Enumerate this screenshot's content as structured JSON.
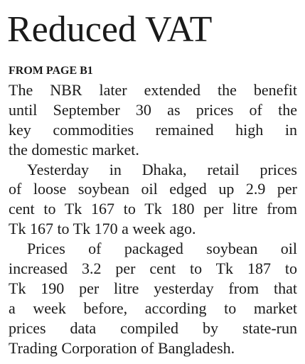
{
  "headline": "Reduced VAT",
  "kicker": "FROM PAGE B1",
  "paragraphs": [
    {
      "lines": [
        "The NBR later extended the benefit",
        "until September 30 as prices of the",
        "key commodities remained high in",
        "the domestic market."
      ]
    },
    {
      "lines": [
        "Yesterday in Dhaka, retail prices",
        "of loose soybean oil edged up 2.9 per",
        "cent to Tk 167 to Tk 180 per litre from",
        "Tk 167 to Tk 170 a week ago."
      ]
    },
    {
      "lines": [
        "Prices of packaged soybean oil",
        "increased 3.2 per cent to Tk 187 to",
        "Tk 190 per litre yesterday from that",
        "a week before, according to market",
        "prices data compiled by state-run",
        "Trading Corporation of Bangladesh."
      ]
    }
  ]
}
